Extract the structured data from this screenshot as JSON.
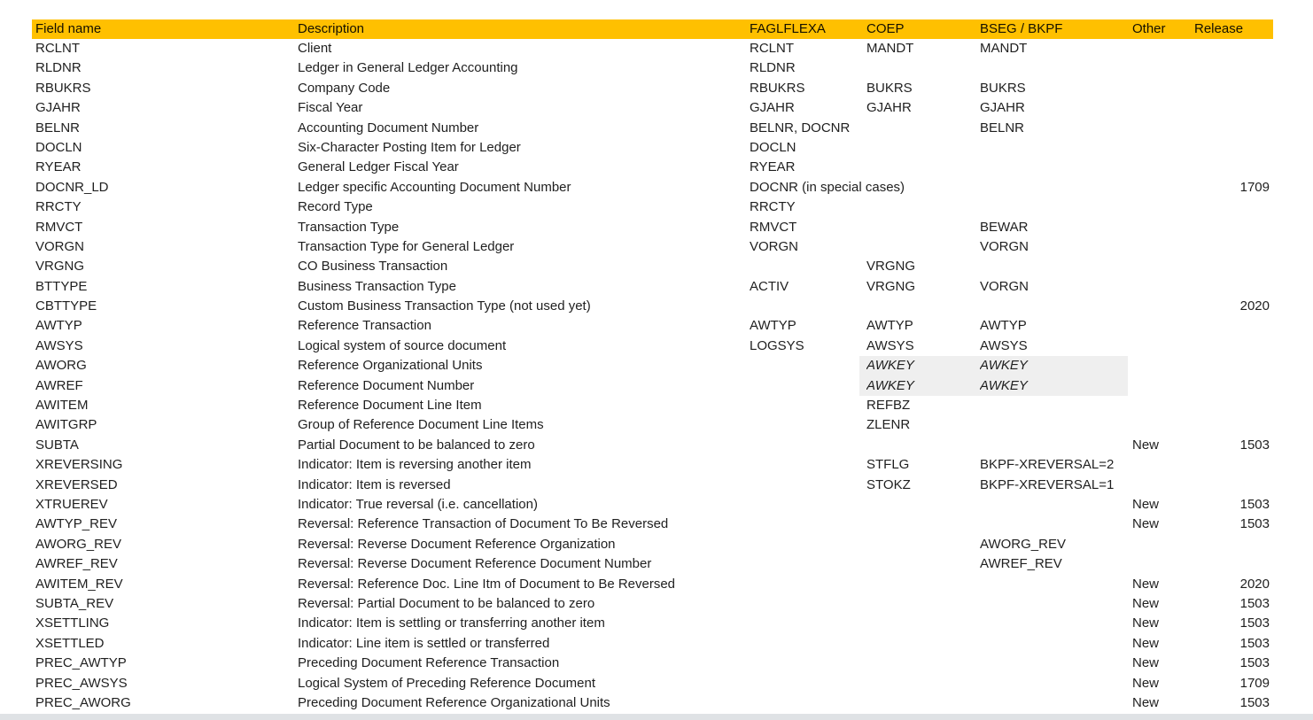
{
  "colors": {
    "header_bg": "#FFC000",
    "header_text": "#151000",
    "text": "#1F1F1F",
    "highlight": "#EFEFEF",
    "bottom_bar": "#DFE2E5"
  },
  "table": {
    "columns": [
      {
        "key": "field",
        "label": "Field name"
      },
      {
        "key": "desc",
        "label": "Description"
      },
      {
        "key": "faglflexa",
        "label": "FAGLFLEXA"
      },
      {
        "key": "coep",
        "label": "COEP"
      },
      {
        "key": "bseg",
        "label": "BSEG / BKPF"
      },
      {
        "key": "other",
        "label": "Other"
      },
      {
        "key": "release",
        "label": "Release"
      }
    ],
    "rows": [
      {
        "field": "RCLNT",
        "desc": "Client",
        "faglflexa": "RCLNT",
        "coep": "MANDT",
        "bseg": "MANDT",
        "other": "",
        "release": ""
      },
      {
        "field": "RLDNR",
        "desc": "Ledger in General Ledger Accounting",
        "faglflexa": "RLDNR",
        "coep": "",
        "bseg": "",
        "other": "",
        "release": ""
      },
      {
        "field": "RBUKRS",
        "desc": "Company Code",
        "faglflexa": "RBUKRS",
        "coep": "BUKRS",
        "bseg": "BUKRS",
        "other": "",
        "release": ""
      },
      {
        "field": "GJAHR",
        "desc": "Fiscal Year",
        "faglflexa": "GJAHR",
        "coep": "GJAHR",
        "bseg": "GJAHR",
        "other": "",
        "release": ""
      },
      {
        "field": "BELNR",
        "desc": "Accounting Document Number",
        "faglflexa": "BELNR, DOCNR",
        "coep": "",
        "bseg": "BELNR",
        "other": "",
        "release": ""
      },
      {
        "field": "DOCLN",
        "desc": "Six-Character Posting Item for Ledger",
        "faglflexa": "DOCLN",
        "coep": "",
        "bseg": "",
        "other": "",
        "release": ""
      },
      {
        "field": "RYEAR",
        "desc": "General Ledger Fiscal Year",
        "faglflexa": "RYEAR",
        "coep": "",
        "bseg": "",
        "other": "",
        "release": ""
      },
      {
        "field": "DOCNR_LD",
        "desc": "Ledger specific Accounting Document Number",
        "faglflexa": "DOCNR (in special cases)",
        "coep": "",
        "bseg": "",
        "other": "",
        "release": "1709"
      },
      {
        "field": "RRCTY",
        "desc": "Record Type",
        "faglflexa": "RRCTY",
        "coep": "",
        "bseg": "",
        "other": "",
        "release": ""
      },
      {
        "field": "RMVCT",
        "desc": "Transaction Type",
        "faglflexa": "RMVCT",
        "coep": "",
        "bseg": "BEWAR",
        "other": "",
        "release": ""
      },
      {
        "field": "VORGN",
        "desc": "Transaction Type for General Ledger",
        "faglflexa": "VORGN",
        "coep": "",
        "bseg": "VORGN",
        "other": "",
        "release": ""
      },
      {
        "field": "VRGNG",
        "desc": "CO Business Transaction",
        "faglflexa": "",
        "coep": "VRGNG",
        "bseg": "",
        "other": "",
        "release": ""
      },
      {
        "field": "BTTYPE",
        "desc": "Business Transaction Type",
        "faglflexa": "ACTIV",
        "coep": "VRGNG",
        "bseg": "VORGN",
        "other": "",
        "release": ""
      },
      {
        "field": "CBTTYPE",
        "desc": "Custom Business Transaction Type (not used yet)",
        "faglflexa": "",
        "coep": "",
        "bseg": "",
        "other": "",
        "release": "2020"
      },
      {
        "field": "AWTYP",
        "desc": "Reference Transaction",
        "faglflexa": "AWTYP",
        "coep": "AWTYP",
        "bseg": "AWTYP",
        "other": "",
        "release": ""
      },
      {
        "field": "AWSYS",
        "desc": "Logical system of source document",
        "faglflexa": "LOGSYS",
        "coep": "AWSYS",
        "bseg": "AWSYS",
        "other": "",
        "release": ""
      },
      {
        "field": "AWORG",
        "desc": "Reference Organizational Units",
        "faglflexa": "",
        "coep": "AWKEY",
        "bseg": "AWKEY",
        "other": "",
        "release": "",
        "highlight": true
      },
      {
        "field": "AWREF",
        "desc": "Reference Document Number",
        "faglflexa": "",
        "coep": "AWKEY",
        "bseg": "AWKEY",
        "other": "",
        "release": "",
        "highlight": true
      },
      {
        "field": "AWITEM",
        "desc": "Reference Document Line Item",
        "faglflexa": "",
        "coep": "REFBZ",
        "bseg": "",
        "other": "",
        "release": ""
      },
      {
        "field": "AWITGRP",
        "desc": "Group of Reference Document Line Items",
        "faglflexa": "",
        "coep": "ZLENR",
        "bseg": "",
        "other": "",
        "release": ""
      },
      {
        "field": "SUBTA",
        "desc": "Partial Document to be balanced to zero",
        "faglflexa": "",
        "coep": "",
        "bseg": "",
        "other": "New",
        "release": "1503"
      },
      {
        "field": "XREVERSING",
        "desc": "Indicator: Item is reversing another item",
        "faglflexa": "",
        "coep": "STFLG",
        "bseg": "BKPF-XREVERSAL=2",
        "other": "",
        "release": ""
      },
      {
        "field": "XREVERSED",
        "desc": "Indicator: Item is reversed",
        "faglflexa": "",
        "coep": "STOKZ",
        "bseg": "BKPF-XREVERSAL=1",
        "other": "",
        "release": ""
      },
      {
        "field": "XTRUEREV",
        "desc": "Indicator: True reversal (i.e. cancellation)",
        "faglflexa": "",
        "coep": "",
        "bseg": "",
        "other": "New",
        "release": "1503"
      },
      {
        "field": "AWTYP_REV",
        "desc": "Reversal: Reference Transaction of Document To Be Reversed",
        "faglflexa": "",
        "coep": "",
        "bseg": "",
        "other": "New",
        "release": "1503"
      },
      {
        "field": "AWORG_REV",
        "desc": "Reversal: Reverse Document Reference Organization",
        "faglflexa": "",
        "coep": "",
        "bseg": "AWORG_REV",
        "other": "",
        "release": ""
      },
      {
        "field": "AWREF_REV",
        "desc": "Reversal: Reverse Document Reference Document Number",
        "faglflexa": "",
        "coep": "",
        "bseg": "AWREF_REV",
        "other": "",
        "release": ""
      },
      {
        "field": "AWITEM_REV",
        "desc": "Reversal: Reference Doc. Line Itm of Document to Be Reversed",
        "faglflexa": "",
        "coep": "",
        "bseg": "",
        "other": "New",
        "release": "2020"
      },
      {
        "field": "SUBTA_REV",
        "desc": "Reversal: Partial Document to be balanced to zero",
        "faglflexa": "",
        "coep": "",
        "bseg": "",
        "other": "New",
        "release": "1503"
      },
      {
        "field": "XSETTLING",
        "desc": "Indicator: Item is settling or transferring another item",
        "faglflexa": "",
        "coep": "",
        "bseg": "",
        "other": "New",
        "release": "1503"
      },
      {
        "field": "XSETTLED",
        "desc": "Indicator: Line item is settled or transferred",
        "faglflexa": "",
        "coep": "",
        "bseg": "",
        "other": "New",
        "release": "1503"
      },
      {
        "field": "PREC_AWTYP",
        "desc": "Preceding Document Reference Transaction",
        "faglflexa": "",
        "coep": "",
        "bseg": "",
        "other": "New",
        "release": "1503"
      },
      {
        "field": "PREC_AWSYS",
        "desc": "Logical System of Preceding Reference Document",
        "faglflexa": "",
        "coep": "",
        "bseg": "",
        "other": "New",
        "release": "1709"
      },
      {
        "field": "PREC_AWORG",
        "desc": "Preceding Document Reference Organizational Units",
        "faglflexa": "",
        "coep": "",
        "bseg": "",
        "other": "New",
        "release": "1503"
      }
    ]
  }
}
